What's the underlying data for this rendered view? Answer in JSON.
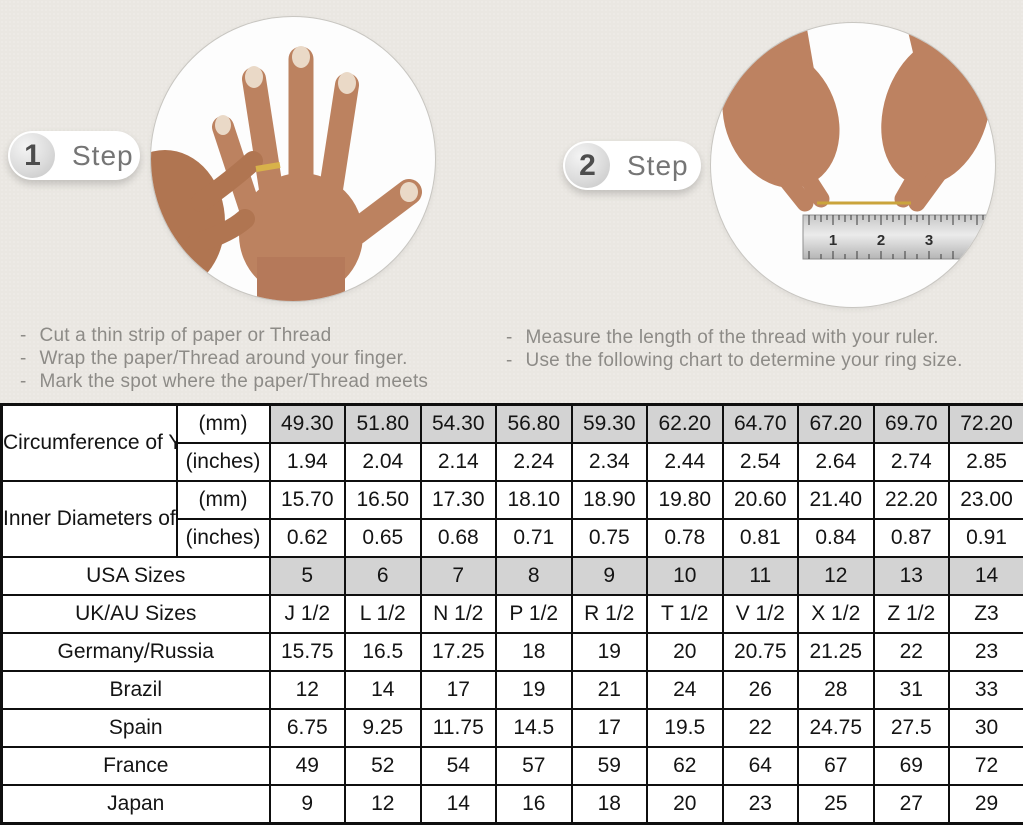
{
  "steps": [
    {
      "number": "1",
      "label": "Step",
      "image": "hand-with-ring-photo",
      "instructions": [
        "Cut a thin strip of paper or Thread",
        "Wrap the paper/Thread around your finger.",
        "Mark the spot where the paper/Thread meets"
      ]
    },
    {
      "number": "2",
      "label": "Step",
      "image": "thread-over-ruler-photo",
      "instructions": [
        "Measure the length of the thread with your ruler.",
        "Use the following chart to determine your ring size."
      ]
    }
  ],
  "table": {
    "groups": [
      {
        "label": "Circumference of Your Finger",
        "rows": [
          {
            "unit": "(mm)",
            "shaded": true,
            "values": [
              "49.30",
              "51.80",
              "54.30",
              "56.80",
              "59.30",
              "62.20",
              "64.70",
              "67.20",
              "69.70",
              "72.20"
            ]
          },
          {
            "unit": "(inches)",
            "shaded": false,
            "values": [
              "1.94",
              "2.04",
              "2.14",
              "2.24",
              "2.34",
              "2.44",
              "2.54",
              "2.64",
              "2.74",
              "2.85"
            ]
          }
        ]
      },
      {
        "label": "Inner Diameters of Rings",
        "rows": [
          {
            "unit": "(mm)",
            "shaded": false,
            "values": [
              "15.70",
              "16.50",
              "17.30",
              "18.10",
              "18.90",
              "19.80",
              "20.60",
              "21.40",
              "22.20",
              "23.00"
            ]
          },
          {
            "unit": "(inches)",
            "shaded": false,
            "values": [
              "0.62",
              "0.65",
              "0.68",
              "0.71",
              "0.75",
              "0.78",
              "0.81",
              "0.84",
              "0.87",
              "0.91"
            ]
          }
        ]
      }
    ],
    "size_rows": [
      {
        "label": "USA Sizes",
        "shaded": true,
        "values": [
          "5",
          "6",
          "7",
          "8",
          "9",
          "10",
          "11",
          "12",
          "13",
          "14"
        ]
      },
      {
        "label": "UK/AU Sizes",
        "shaded": false,
        "values": [
          "J 1/2",
          "L 1/2",
          "N 1/2",
          "P 1/2",
          "R 1/2",
          "T 1/2",
          "V 1/2",
          "X 1/2",
          "Z 1/2",
          "Z3"
        ]
      },
      {
        "label": "Germany/Russia",
        "shaded": false,
        "values": [
          "15.75",
          "16.5",
          "17.25",
          "18",
          "19",
          "20",
          "20.75",
          "21.25",
          "22",
          "23"
        ]
      },
      {
        "label": "Brazil",
        "shaded": false,
        "values": [
          "12",
          "14",
          "17",
          "19",
          "21",
          "24",
          "26",
          "28",
          "31",
          "33"
        ]
      },
      {
        "label": "Spain",
        "shaded": false,
        "values": [
          "6.75",
          "9.25",
          "11.75",
          "14.5",
          "17",
          "19.5",
          "22",
          "24.75",
          "27.5",
          "30"
        ]
      },
      {
        "label": "France",
        "shaded": false,
        "values": [
          "49",
          "52",
          "54",
          "57",
          "59",
          "62",
          "64",
          "67",
          "69",
          "72"
        ]
      },
      {
        "label": "Japan",
        "shaded": false,
        "values": [
          "9",
          "12",
          "14",
          "16",
          "18",
          "20",
          "23",
          "25",
          "27",
          "29"
        ]
      }
    ]
  },
  "colors": {
    "top_background": "#eae7e2",
    "shaded_cell": "#d3d3d3",
    "table_border": "#0f0f0f",
    "muted_text": "#8d8b87",
    "step_text": "#757575",
    "gold_thread": "#caa43c",
    "skin_tone": "#bc8260"
  }
}
